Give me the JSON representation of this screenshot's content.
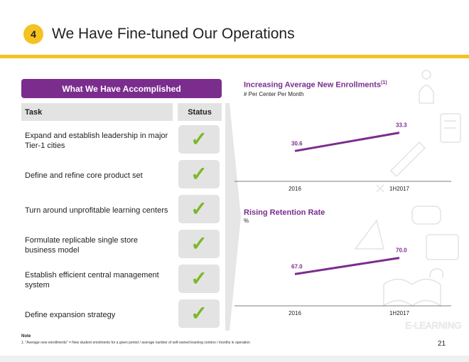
{
  "header": {
    "number": "4",
    "title": "We Have Fine-tuned Our Operations"
  },
  "table": {
    "heading": "What We Have Accomplished",
    "col_task": "Task",
    "col_status": "Status",
    "rows": [
      {
        "task": "Expand and establish leadership in major Tier-1 cities",
        "status": "done"
      },
      {
        "task": "Define and refine core product set",
        "status": "done"
      },
      {
        "task": "Turn around unprofitable learning centers",
        "status": "done"
      },
      {
        "task": "Formulate replicable single store business model",
        "status": "done"
      },
      {
        "task": "Establish efficient central management system",
        "status": "done"
      },
      {
        "task": "Define expansion strategy",
        "status": "done"
      }
    ]
  },
  "colors": {
    "accent": "#f5c220",
    "brand": "#7b2d8e",
    "check": "#7bb82a"
  },
  "chart_data": [
    {
      "type": "line",
      "title": "Increasing Average New Enrollments",
      "title_sup": "(1)",
      "unit": "# Per Center Per Month",
      "categories": [
        "2016",
        "1H2017"
      ],
      "values": [
        30.6,
        33.3
      ],
      "value_labels": [
        "30.6",
        "33.3"
      ]
    },
    {
      "type": "line",
      "title": "Rising Retention Rate",
      "unit": "%",
      "categories": [
        "2016",
        "1H2017"
      ],
      "values": [
        67.0,
        70.0
      ],
      "value_labels": [
        "67.0",
        "70.0"
      ]
    }
  ],
  "footer": {
    "note_label": "Note",
    "note_text": "1. \"Average new enrollments\" = New student enrolments for a given period / average number of self-owned learning centers / months in operation",
    "page_number": "21"
  }
}
